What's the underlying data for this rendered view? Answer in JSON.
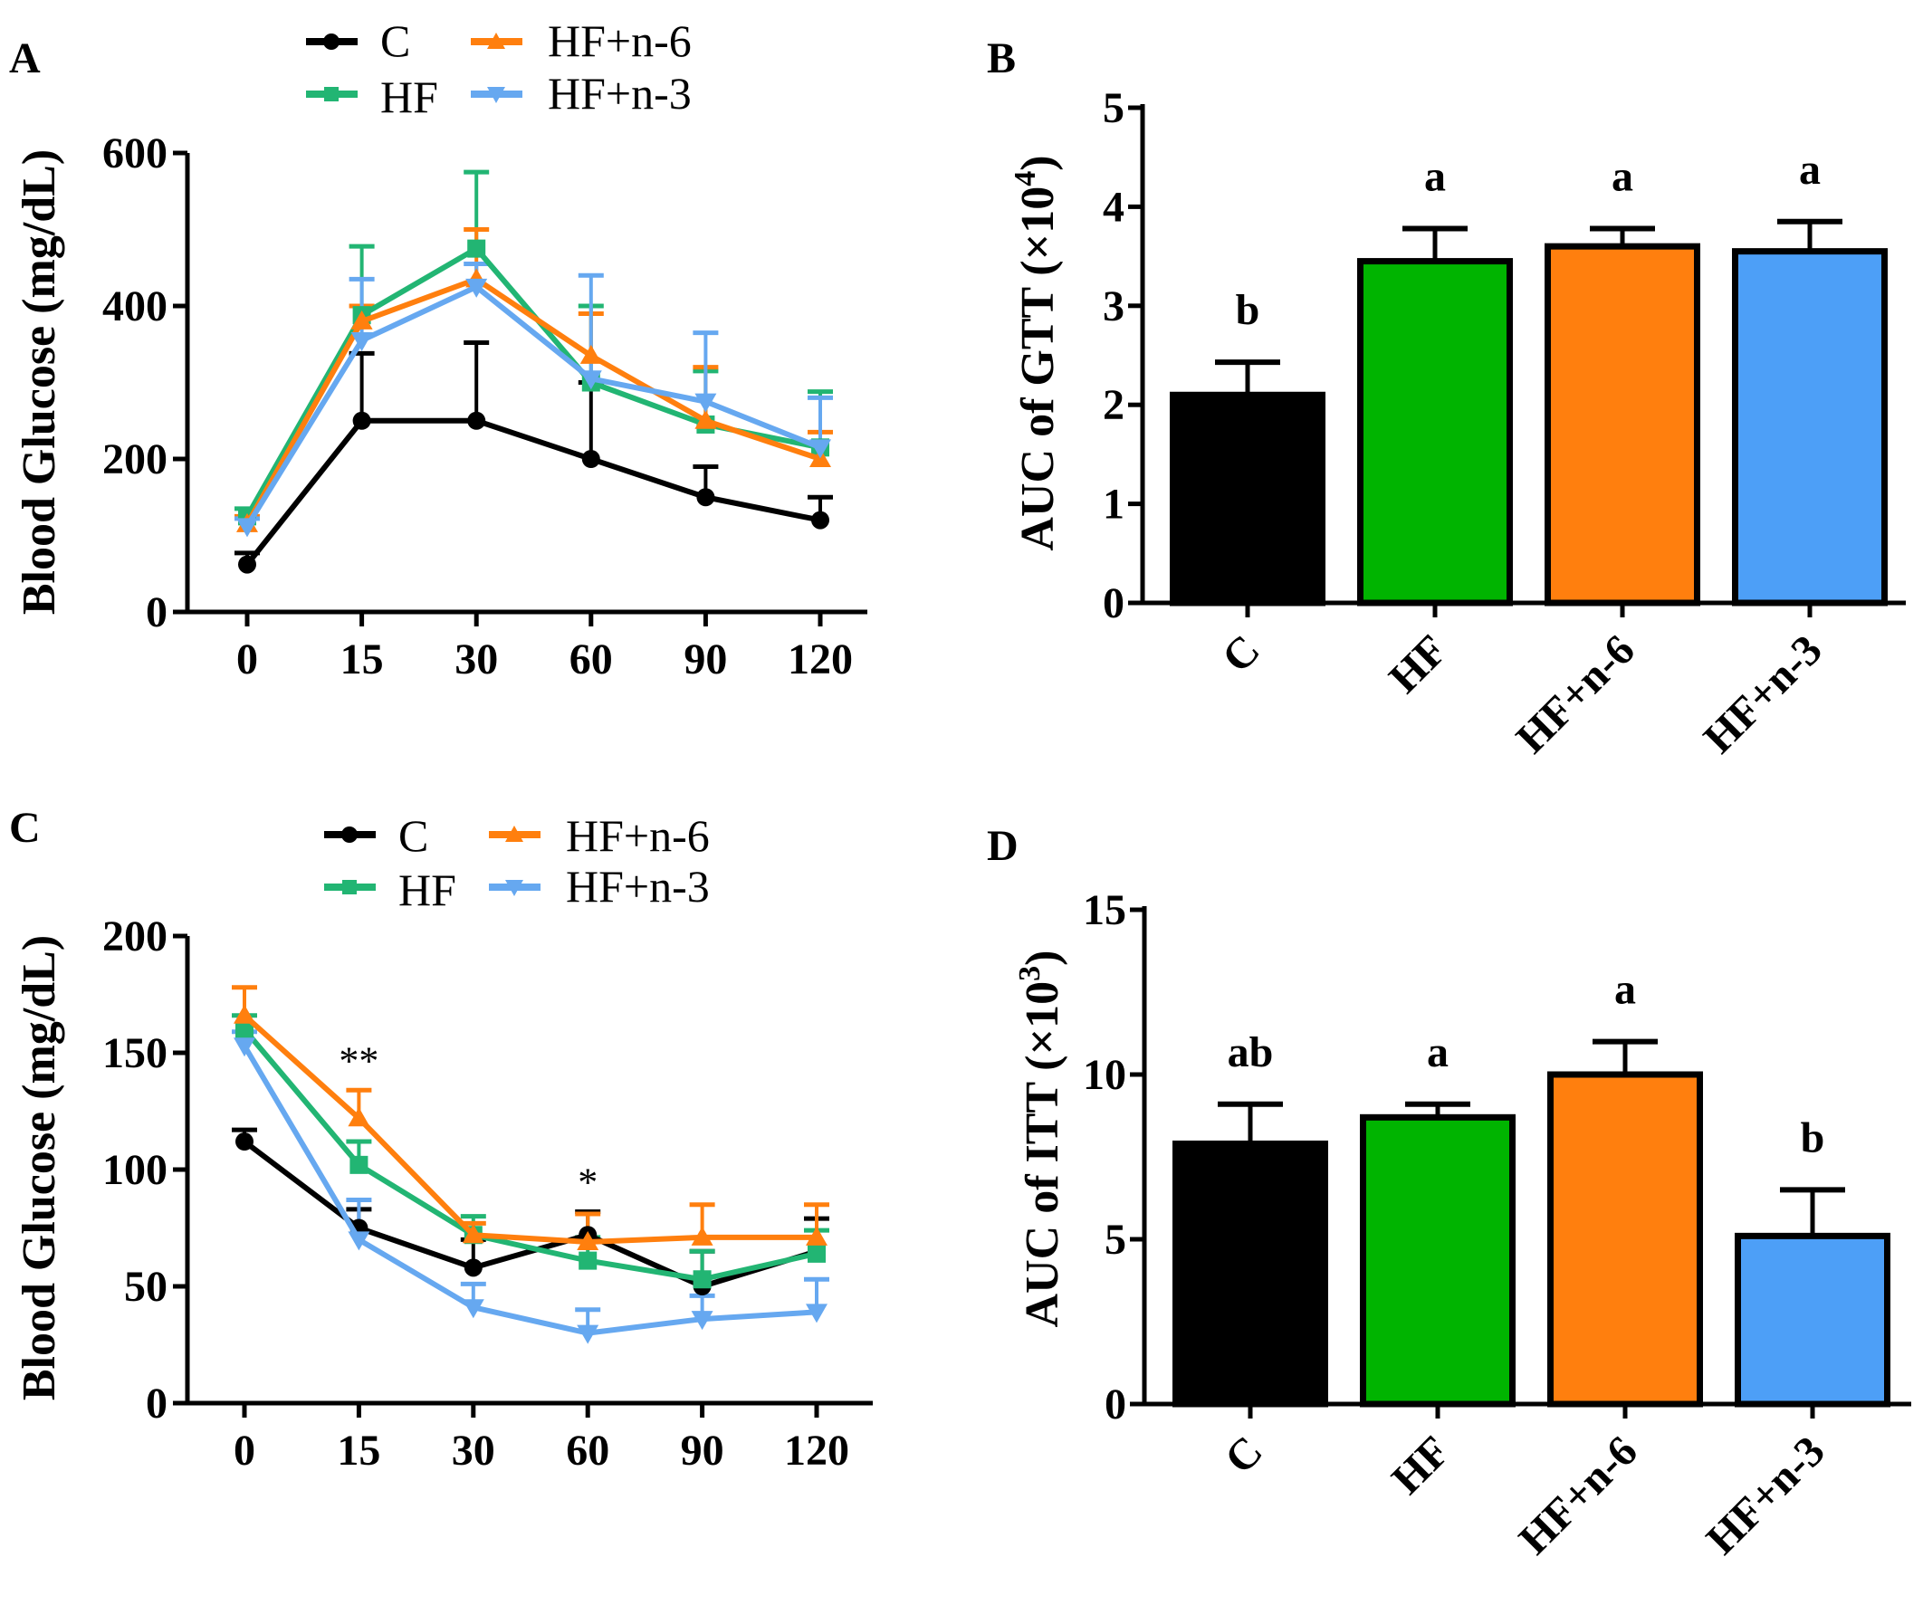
{
  "colors": {
    "C": "#000000",
    "HF_line": "#22b573",
    "HF_bar": "#00b400",
    "n6": "#ff7f0e",
    "n3_line": "#66a8f0",
    "n3_bar": "#4d9ff7"
  },
  "chart_data": [
    {
      "panel": "A",
      "type": "line",
      "ylabel": "Blood Glucose (mg/dL)",
      "xlabel": "",
      "x": [
        "0",
        "15",
        "30",
        "60",
        "90",
        "120"
      ],
      "yticks": [
        "0",
        "200",
        "400",
        "600"
      ],
      "ylim": [
        0,
        600
      ],
      "legend": [
        "C",
        "HF",
        "HF+n-6",
        "HF+n-3"
      ],
      "series": [
        {
          "name": "C",
          "marker": "circle",
          "values": [
            62,
            250,
            250,
            200,
            150,
            120
          ],
          "err": [
            15,
            88,
            102,
            100,
            40,
            30
          ]
        },
        {
          "name": "HF",
          "marker": "square",
          "values": [
            125,
            388,
            475,
            300,
            245,
            215
          ],
          "err": [
            10,
            90,
            100,
            100,
            70,
            73
          ]
        },
        {
          "name": "HF+n-6",
          "marker": "triangle-up",
          "values": [
            115,
            380,
            435,
            335,
            250,
            200
          ],
          "err": [
            10,
            20,
            65,
            55,
            70,
            35
          ]
        },
        {
          "name": "HF+n-3",
          "marker": "triangle-down",
          "values": [
            112,
            355,
            425,
            305,
            275,
            215
          ],
          "err": [
            10,
            80,
            30,
            135,
            90,
            65
          ]
        }
      ]
    },
    {
      "panel": "B",
      "type": "bar",
      "ylabel_main": "AUC of GTT (×10",
      "ylabel_sup": "4",
      "ylabel_end": ")",
      "categories": [
        "C",
        "HF",
        "HF+n-6",
        "HF+n-3"
      ],
      "values": [
        2.1,
        3.45,
        3.6,
        3.55
      ],
      "err": [
        0.33,
        0.33,
        0.18,
        0.3
      ],
      "letters": [
        "b",
        "a",
        "a",
        "a"
      ],
      "yticks": [
        "0",
        "1",
        "2",
        "3",
        "4",
        "5"
      ],
      "ylim": [
        0,
        5
      ]
    },
    {
      "panel": "C",
      "type": "line",
      "ylabel": "Blood Glucose (mg/dL)",
      "xlabel": "",
      "x": [
        "0",
        "15",
        "30",
        "60",
        "90",
        "120"
      ],
      "yticks": [
        "0",
        "50",
        "100",
        "150",
        "200"
      ],
      "ylim": [
        0,
        200
      ],
      "legend": [
        "C",
        "HF",
        "HF+n-6",
        "HF+n-3"
      ],
      "annotations": [
        {
          "x": "15",
          "text": "**"
        },
        {
          "x": "60",
          "text": "*"
        }
      ],
      "series": [
        {
          "name": "C",
          "marker": "circle",
          "values": [
            112,
            75,
            58,
            72,
            50,
            65
          ],
          "err": [
            5,
            8,
            12,
            10,
            15,
            14
          ]
        },
        {
          "name": "HF",
          "marker": "square",
          "values": [
            160,
            102,
            72,
            61,
            53,
            64
          ],
          "err": [
            6,
            10,
            8,
            10,
            12,
            10
          ]
        },
        {
          "name": "HF+n-6",
          "marker": "triangle-up",
          "values": [
            166,
            122,
            72,
            69,
            71,
            71
          ],
          "err": [
            12,
            12,
            5,
            12,
            14,
            14
          ]
        },
        {
          "name": "HF+n-3",
          "marker": "triangle-down",
          "values": [
            153,
            70,
            41,
            30,
            36,
            39
          ],
          "err": [
            6,
            17,
            10,
            10,
            10,
            14
          ]
        }
      ]
    },
    {
      "panel": "D",
      "type": "bar",
      "ylabel_main": "AUC of ITT (×10",
      "ylabel_sup": "3",
      "ylabel_end": ")",
      "categories": [
        "C",
        "HF",
        "HF+n-6",
        "HF+n-3"
      ],
      "values": [
        7.9,
        8.7,
        10.0,
        5.1
      ],
      "err": [
        1.2,
        0.4,
        1.0,
        1.4
      ],
      "letters": [
        "ab",
        "a",
        "a",
        "b"
      ],
      "yticks": [
        "0",
        "5",
        "10",
        "15"
      ],
      "ylim": [
        0,
        15
      ]
    }
  ]
}
